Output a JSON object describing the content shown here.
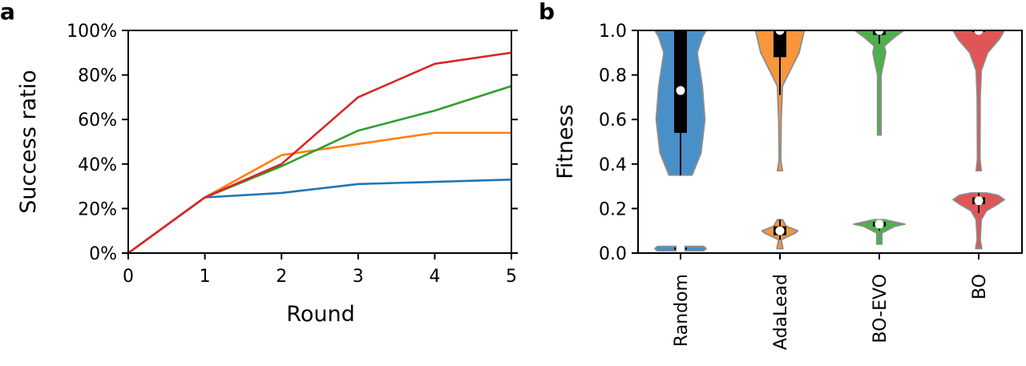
{
  "figure": {
    "panels": [
      "a",
      "b"
    ]
  },
  "chart_data": [
    {
      "panel_label": "a",
      "type": "line",
      "title": "",
      "xlabel": "Round",
      "ylabel": "Success ratio",
      "x": [
        0,
        1,
        2,
        3,
        4,
        5
      ],
      "xlim": [
        0,
        5
      ],
      "ylim": [
        0,
        100
      ],
      "xticks": [
        "0",
        "1",
        "2",
        "3",
        "4",
        "5"
      ],
      "yticks": [
        "0%",
        "20%",
        "40%",
        "60%",
        "80%",
        "100%"
      ],
      "ytick_values": [
        0,
        20,
        40,
        60,
        80,
        100
      ],
      "grid": false,
      "legend": "none",
      "series": [
        {
          "name": "Random",
          "color": "#1f77b4",
          "values": [
            0,
            25,
            27,
            31,
            32,
            33
          ]
        },
        {
          "name": "AdaLead",
          "color": "#ff7f0e",
          "values": [
            0,
            25,
            44,
            49,
            54,
            54
          ]
        },
        {
          "name": "BO-EVO",
          "color": "#2ca02c",
          "values": [
            0,
            25,
            39,
            55,
            64,
            75
          ]
        },
        {
          "name": "BO",
          "color": "#d62728",
          "values": [
            0,
            25,
            40,
            70,
            85,
            90
          ]
        }
      ]
    },
    {
      "panel_label": "b",
      "type": "violin",
      "title": "",
      "xlabel": "",
      "ylabel": "Fitness",
      "ylim": [
        0,
        1
      ],
      "yticks": [
        "0.0",
        "0.2",
        "0.4",
        "0.6",
        "0.8",
        "1.0"
      ],
      "ytick_values": [
        0,
        0.2,
        0.4,
        0.6,
        0.8,
        1.0
      ],
      "categories": [
        "Random",
        "AdaLead",
        "BO-EVO",
        "BO"
      ],
      "grid": false,
      "legend": "none",
      "groups": [
        {
          "name": "Random",
          "color": "#4a90c8",
          "violins": [
            {
              "min": 0.35,
              "max": 1.0,
              "q1": 0.54,
              "median": 0.73,
              "q3": 1.0,
              "whisker_low": 0.35,
              "whisker_high": 1.0,
              "density": [
                [
                  0.35,
                  0.45
                ],
                [
                  0.45,
                  0.8
                ],
                [
                  0.6,
                  0.95
                ],
                [
                  0.75,
                  0.85
                ],
                [
                  0.9,
                  0.65
                ],
                [
                  0.97,
                  0.85
                ],
                [
                  1.0,
                  1.0
                ]
              ]
            },
            {
              "min": 0.01,
              "max": 0.03,
              "q1": 0.015,
              "median": 0.02,
              "q3": 0.025,
              "whisker_low": 0.01,
              "whisker_high": 0.03,
              "density": [
                [
                  0.01,
                  0.9
                ],
                [
                  0.02,
                  1.0
                ],
                [
                  0.03,
                  0.9
                ]
              ]
            }
          ]
        },
        {
          "name": "AdaLead",
          "color": "#f7963a",
          "violins": [
            {
              "min": 0.37,
              "max": 1.0,
              "q1": 0.88,
              "median": 1.0,
              "q3": 1.0,
              "whisker_low": 0.71,
              "whisker_high": 1.0,
              "density": [
                [
                  0.37,
                  0.1
                ],
                [
                  0.42,
                  0.03
                ],
                [
                  0.6,
                  0.05
                ],
                [
                  0.75,
                  0.1
                ],
                [
                  0.82,
                  0.4
                ],
                [
                  0.9,
                  0.75
                ],
                [
                  1.0,
                  0.95
                ]
              ]
            },
            {
              "min": 0.02,
              "max": 0.15,
              "q1": 0.08,
              "median": 0.1,
              "q3": 0.12,
              "whisker_low": 0.06,
              "whisker_high": 0.15,
              "density": [
                [
                  0.02,
                  0.12
                ],
                [
                  0.06,
                  0.05
                ],
                [
                  0.09,
                  0.6
                ],
                [
                  0.1,
                  0.7
                ],
                [
                  0.12,
                  0.25
                ],
                [
                  0.15,
                  0.1
                ]
              ]
            }
          ]
        },
        {
          "name": "BO-EVO",
          "color": "#4cb04c",
          "violins": [
            {
              "min": 0.53,
              "max": 1.0,
              "q1": 0.98,
              "median": 1.0,
              "q3": 1.0,
              "whisker_low": 0.94,
              "whisker_high": 1.0,
              "density": [
                [
                  0.53,
                  0.07
                ],
                [
                  0.8,
                  0.07
                ],
                [
                  0.87,
                  0.2
                ],
                [
                  0.9,
                  0.25
                ],
                [
                  0.93,
                  0.2
                ],
                [
                  0.97,
                  0.6
                ],
                [
                  1.0,
                  0.95
                ]
              ]
            },
            {
              "min": 0.04,
              "max": 0.15,
              "q1": 0.12,
              "median": 0.13,
              "q3": 0.14,
              "whisker_low": 0.1,
              "whisker_high": 0.15,
              "density": [
                [
                  0.04,
                  0.1
                ],
                [
                  0.09,
                  0.1
                ],
                [
                  0.12,
                  0.6
                ],
                [
                  0.13,
                  1.0
                ],
                [
                  0.14,
                  0.6
                ],
                [
                  0.15,
                  0.2
                ]
              ]
            }
          ]
        },
        {
          "name": "BO",
          "color": "#e05555",
          "violins": [
            {
              "min": 0.37,
              "max": 1.0,
              "q1": 0.995,
              "median": 1.0,
              "q3": 1.0,
              "whisker_low": 0.99,
              "whisker_high": 1.0,
              "density": [
                [
                  0.37,
                  0.1
                ],
                [
                  0.42,
                  0.05
                ],
                [
                  0.7,
                  0.06
                ],
                [
                  0.82,
                  0.1
                ],
                [
                  0.9,
                  0.35
                ],
                [
                  0.96,
                  0.8
                ],
                [
                  1.0,
                  1.0
                ]
              ]
            },
            {
              "min": 0.02,
              "max": 0.27,
              "q1": 0.22,
              "median": 0.235,
              "q3": 0.25,
              "whisker_low": 0.18,
              "whisker_high": 0.27,
              "density": [
                [
                  0.02,
                  0.12
                ],
                [
                  0.06,
                  0.06
                ],
                [
                  0.15,
                  0.1
                ],
                [
                  0.19,
                  0.3
                ],
                [
                  0.22,
                  0.75
                ],
                [
                  0.24,
                  1.0
                ],
                [
                  0.26,
                  0.75
                ],
                [
                  0.27,
                  0.3
                ]
              ]
            }
          ]
        }
      ]
    }
  ]
}
